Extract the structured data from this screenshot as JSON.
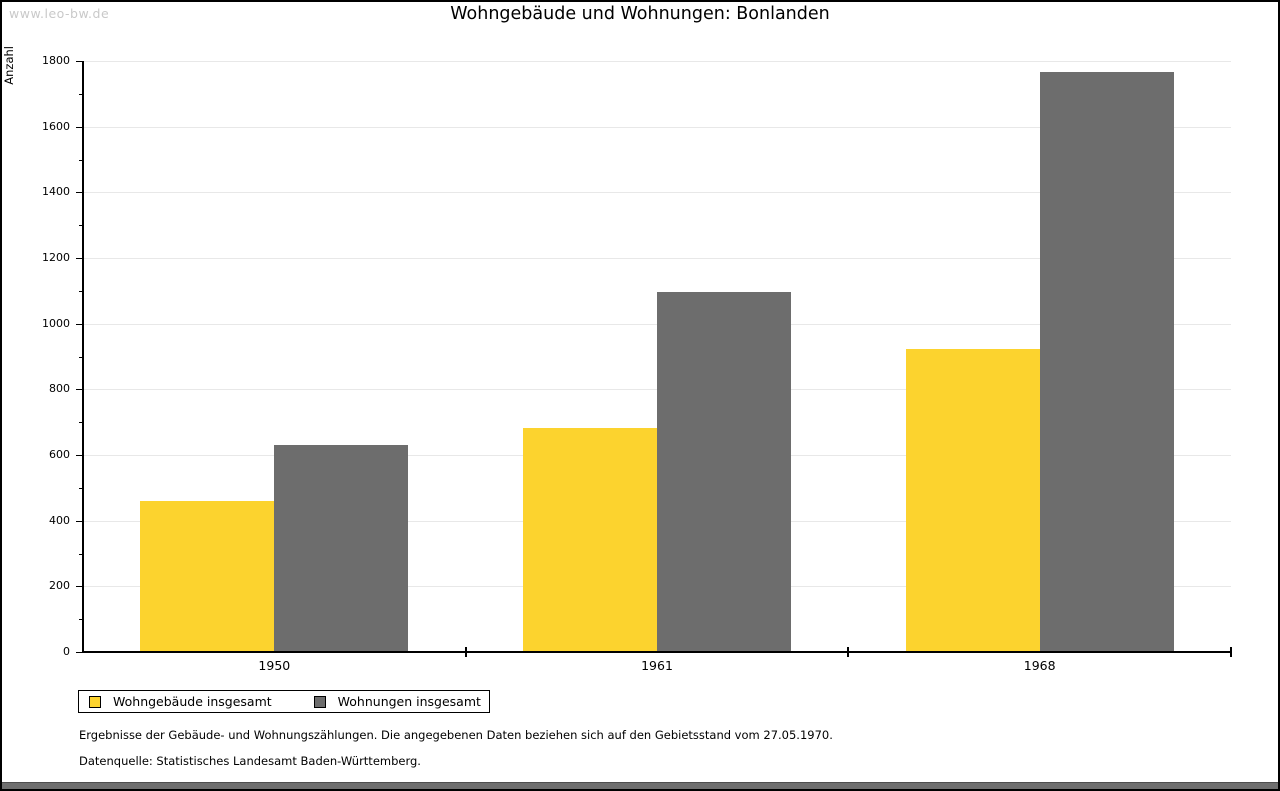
{
  "watermark": "www.leo-bw.de",
  "title": "Wohngebäude und Wohnungen: Bonlanden",
  "chart_data": {
    "type": "bar",
    "title": "Wohngebäude und Wohnungen: Bonlanden",
    "ylabel": "Anzahl",
    "xlabel": "",
    "categories": [
      "1950",
      "1961",
      "1968"
    ],
    "series": [
      {
        "name": "Wohngebäude insgesamt",
        "color": "#fcd32e",
        "values": [
          459,
          683,
          924
        ]
      },
      {
        "name": "Wohnungen insgesamt",
        "color": "#6d6d6d",
        "values": [
          630,
          1095,
          1766
        ]
      }
    ],
    "ylim": [
      0,
      1800
    ],
    "ytick_step": 200,
    "minor_tick_step": 100,
    "grid": true,
    "legend_position": "bottom-left"
  },
  "footer": {
    "line1": "Ergebnisse der Gebäude- und Wohnungszählungen. Die angegebenen Daten beziehen sich auf den Gebietsstand vom 27.05.1970.",
    "line2": "Datenquelle: Statistisches Landesamt Baden-Württemberg."
  },
  "colors": {
    "bar_yellow": "#fcd32e",
    "bar_gray": "#6d6d6d",
    "gridline": "#e8e8e8",
    "axis": "#000000",
    "watermark": "#c9c9c9",
    "window_strip": "#6e6e6e"
  }
}
